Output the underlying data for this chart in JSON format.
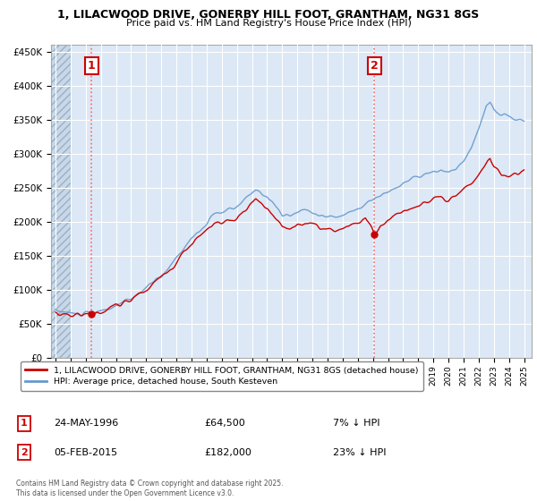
{
  "title1": "1, LILACWOOD DRIVE, GONERBY HILL FOOT, GRANTHAM, NG31 8GS",
  "title2": "Price paid vs. HM Land Registry's House Price Index (HPI)",
  "legend_line1": "1, LILACWOOD DRIVE, GONERBY HILL FOOT, GRANTHAM, NG31 8GS (detached house)",
  "legend_line2": "HPI: Average price, detached house, South Kesteven",
  "annotation1_date": "24-MAY-1996",
  "annotation1_price": "£64,500",
  "annotation1_hpi": "7% ↓ HPI",
  "annotation2_date": "05-FEB-2015",
  "annotation2_price": "£182,000",
  "annotation2_hpi": "23% ↓ HPI",
  "copyright": "Contains HM Land Registry data © Crown copyright and database right 2025.\nThis data is licensed under the Open Government Licence v3.0.",
  "sale1_year": 1996.37,
  "sale1_value": 64500,
  "sale2_year": 2015.08,
  "sale2_value": 182000,
  "bg_color": "#dce8f5",
  "line_red": "#cc0000",
  "line_blue": "#6699cc",
  "ylim_max": 460000,
  "ylim_min": 0,
  "xmin": 1993.7,
  "xmax": 2025.5
}
